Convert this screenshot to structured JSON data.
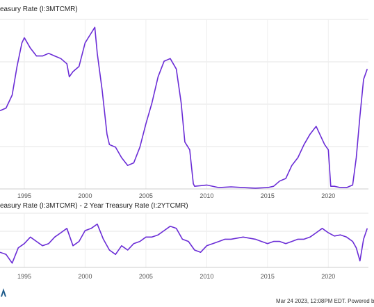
{
  "chart_data": [
    {
      "type": "line",
      "title": "easury Rate (I:3MTCMR)",
      "x_ticks": [
        "1995",
        "2000",
        "2005",
        "2010",
        "2015",
        "2020"
      ],
      "x_range": [
        1993.0,
        2023.3
      ],
      "ylim": [
        0,
        6.5
      ],
      "grid": true,
      "color": "#6a2cd6",
      "series": [
        {
          "x": [
            1993.0,
            1993.5,
            1994.0,
            1994.4,
            1994.8,
            1995.0,
            1995.5,
            1996.0,
            1996.5,
            1997.0,
            1997.5,
            1998.0,
            1998.5,
            1998.7,
            1999.0,
            1999.5,
            2000.0,
            2000.4,
            2000.8,
            2001.0,
            2001.4,
            2001.8,
            2002.0,
            2002.5,
            2003.0,
            2003.5,
            2004.0,
            2004.5,
            2005.0,
            2005.5,
            2006.0,
            2006.5,
            2007.0,
            2007.5,
            2007.9,
            2008.2,
            2008.6,
            2008.9,
            2009.0,
            2010.0,
            2011.0,
            2012.0,
            2013.0,
            2014.0,
            2015.0,
            2015.5,
            2016.0,
            2016.5,
            2017.0,
            2017.5,
            2018.0,
            2018.5,
            2019.0,
            2019.3,
            2019.7,
            2020.0,
            2020.2,
            2020.5,
            2021.0,
            2021.5,
            2022.0,
            2022.3,
            2022.6,
            2022.9,
            2023.2
          ],
          "y": [
            3.0,
            3.1,
            3.6,
            4.7,
            5.6,
            5.8,
            5.4,
            5.1,
            5.1,
            5.2,
            5.1,
            5.0,
            4.8,
            4.3,
            4.5,
            4.7,
            5.6,
            5.9,
            6.2,
            5.2,
            3.8,
            2.1,
            1.7,
            1.6,
            1.2,
            0.9,
            1.0,
            1.6,
            2.5,
            3.3,
            4.3,
            4.9,
            5.0,
            4.6,
            3.3,
            1.8,
            1.5,
            0.2,
            0.1,
            0.15,
            0.05,
            0.08,
            0.05,
            0.03,
            0.05,
            0.1,
            0.3,
            0.4,
            0.9,
            1.2,
            1.7,
            2.1,
            2.4,
            2.1,
            1.7,
            1.5,
            0.1,
            0.1,
            0.05,
            0.05,
            0.15,
            1.2,
            2.8,
            4.2,
            4.6
          ]
        }
      ]
    },
    {
      "type": "line",
      "title": "easury Rate (I:3MTCMR) - 2 Year Treasury Rate (I:2YTCMR)",
      "x_ticks": [
        "1995",
        "2000",
        "2005",
        "2010",
        "2015",
        "2020"
      ],
      "x_range": [
        1993.0,
        2023.3
      ],
      "ylim": [
        -1.5,
        1.0
      ],
      "grid": true,
      "color": "#6a2cd6",
      "series": [
        {
          "x": [
            1993.0,
            1993.5,
            1994.0,
            1994.5,
            1995.0,
            1995.5,
            1996.0,
            1996.5,
            1997.0,
            1997.5,
            1998.0,
            1998.5,
            1999.0,
            1999.5,
            2000.0,
            2000.5,
            2001.0,
            2001.5,
            2002.0,
            2002.5,
            2003.0,
            2003.5,
            2004.0,
            2004.5,
            2005.0,
            2005.5,
            2006.0,
            2006.5,
            2007.0,
            2007.5,
            2008.0,
            2008.5,
            2009.0,
            2009.5,
            2010.0,
            2010.5,
            2011.0,
            2011.5,
            2012.0,
            2013.0,
            2014.0,
            2014.5,
            2015.0,
            2015.5,
            2016.0,
            2016.5,
            2017.0,
            2017.5,
            2018.0,
            2018.5,
            2019.0,
            2019.5,
            2020.0,
            2020.5,
            2021.0,
            2021.5,
            2022.0,
            2022.3,
            2022.6,
            2022.9,
            2023.2
          ],
          "y": [
            -0.8,
            -0.9,
            -1.3,
            -0.6,
            -0.4,
            -0.1,
            -0.3,
            -0.5,
            -0.4,
            -0.1,
            0.1,
            0.3,
            -0.5,
            -0.3,
            0.2,
            0.3,
            0.5,
            -0.2,
            -0.7,
            -0.9,
            -0.5,
            -0.7,
            -0.4,
            -0.3,
            -0.1,
            -0.1,
            0.0,
            0.2,
            0.4,
            0.3,
            -0.2,
            -0.3,
            -0.7,
            -0.8,
            -0.5,
            -0.4,
            -0.3,
            -0.2,
            -0.2,
            -0.1,
            -0.2,
            -0.3,
            -0.4,
            -0.3,
            -0.3,
            -0.4,
            -0.3,
            -0.2,
            -0.2,
            -0.1,
            0.1,
            0.3,
            0.1,
            -0.05,
            0.0,
            -0.1,
            -0.3,
            -0.6,
            -1.2,
            -0.2,
            0.3
          ]
        }
      ]
    }
  ],
  "footer_text": "Mar 24 2023, 12:08PM EDT. Powered b"
}
